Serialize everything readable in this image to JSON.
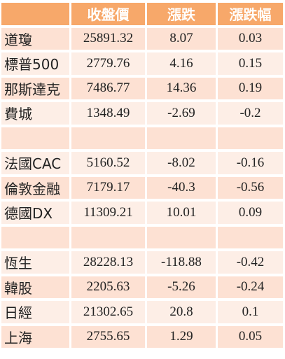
{
  "header": {
    "close": "收盤價",
    "change": "漲跌",
    "change_pct": "漲跌幅"
  },
  "rows": [
    {
      "name": "道瓊",
      "close": "25891.32",
      "change": "8.07",
      "change_pct": "0.03"
    },
    {
      "name": "標普500",
      "close": "2779.76",
      "change": "4.16",
      "change_pct": "0.15"
    },
    {
      "name": "那斯達克",
      "close": "7486.77",
      "change": "14.36",
      "change_pct": "0.19"
    },
    {
      "name": "費城",
      "close": "1348.49",
      "change": "-2.69",
      "change_pct": "-0.2"
    },
    {
      "name": "",
      "close": "",
      "change": "",
      "change_pct": ""
    },
    {
      "name": "法國CAC",
      "close": "5160.52",
      "change": "-8.02",
      "change_pct": "-0.16"
    },
    {
      "name": "倫敦金融",
      "close": "7179.17",
      "change": "-40.3",
      "change_pct": "-0.56"
    },
    {
      "name": "德國DX",
      "close": "11309.21",
      "change": "10.01",
      "change_pct": "0.09"
    },
    {
      "name": "",
      "close": "",
      "change": "",
      "change_pct": ""
    },
    {
      "name": "恆生",
      "close": "28228.13",
      "change": "-118.88",
      "change_pct": "-0.42"
    },
    {
      "name": "韓股",
      "close": "2205.63",
      "change": "-5.26",
      "change_pct": "-0.24"
    },
    {
      "name": "日經",
      "close": "21302.65",
      "change": "20.8",
      "change_pct": "0.1"
    },
    {
      "name": "上海",
      "close": "2755.65",
      "change": "1.29",
      "change_pct": "0.05"
    }
  ]
}
